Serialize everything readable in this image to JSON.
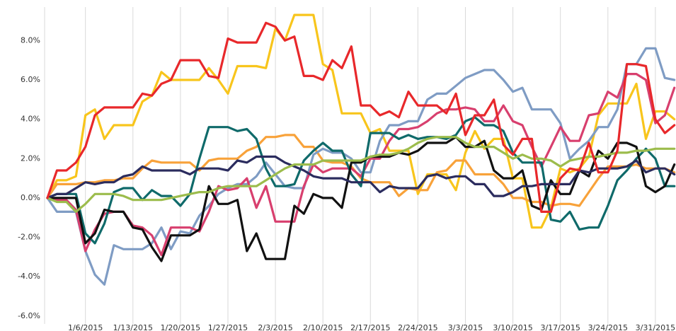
{
  "chart_data": {
    "type": "line",
    "categories": [
      null,
      null,
      null,
      null,
      "1/6/2015",
      null,
      null,
      null,
      null,
      "1/13/2015",
      null,
      null,
      null,
      null,
      "1/20/2015",
      null,
      null,
      null,
      null,
      "1/27/2015",
      null,
      null,
      null,
      null,
      "2/3/2015",
      null,
      null,
      null,
      null,
      "2/10/2015",
      null,
      null,
      null,
      null,
      "2/17/2015",
      null,
      null,
      null,
      null,
      "2/24/2015",
      null,
      null,
      null,
      null,
      "3/3/2015",
      null,
      null,
      null,
      null,
      "3/10/2015",
      null,
      null,
      null,
      null,
      "3/17/2015",
      null,
      null,
      null,
      null,
      "3/24/2015",
      null,
      null,
      null,
      null,
      "3/31/2015",
      null,
      null
    ],
    "ylim": [
      -6.4,
      9.7
    ],
    "yticks": [
      {
        "value": -6,
        "label": "-6.0%"
      },
      {
        "value": -4,
        "label": "-4.0%"
      },
      {
        "value": -2,
        "label": "-2.0%"
      },
      {
        "value": 0,
        "label": "0.0%"
      },
      {
        "value": 2,
        "label": "2.0%"
      },
      {
        "value": 4,
        "label": "4.0%"
      },
      {
        "value": 6,
        "label": "6.0%"
      },
      {
        "value": 8,
        "label": "8.0%"
      }
    ],
    "grid": true,
    "series": [
      {
        "color": "#f8c51c",
        "values": [
          0,
          0.9,
          0.9,
          1.1,
          4.2,
          4.5,
          3.0,
          3.7,
          3.7,
          3.7,
          4.9,
          5.2,
          6.4,
          6.0,
          6.0,
          6.0,
          6.0,
          6.6,
          6.0,
          5.3,
          6.7,
          6.7,
          6.7,
          6.6,
          8.6,
          8.0,
          9.3,
          9.3,
          9.3,
          6.8,
          6.5,
          4.3,
          4.3,
          4.3,
          3.3,
          3.5,
          2.4,
          2.4,
          2.4,
          0.2,
          1.2,
          1.2,
          1.2,
          0.4,
          2.3,
          3.4,
          2.5,
          3.0,
          3.0,
          1.0,
          1.0,
          -1.5,
          -1.5,
          -0.5,
          1.5,
          1.3,
          1.5,
          2.1,
          4.2,
          4.8,
          4.8,
          4.8,
          5.8,
          3.0,
          4.4,
          4.4,
          4.0
        ]
      },
      {
        "color": "#f8a23a",
        "values": [
          0,
          0.7,
          0.7,
          0.7,
          0.8,
          0.8,
          0.9,
          0.9,
          1.0,
          1.0,
          1.5,
          1.9,
          1.8,
          1.8,
          1.8,
          1.8,
          1.4,
          1.9,
          2.0,
          2.0,
          2.0,
          2.4,
          2.6,
          3.1,
          3.1,
          3.2,
          3.2,
          2.6,
          2.6,
          1.9,
          1.8,
          1.8,
          1.6,
          1.0,
          0.8,
          0.8,
          0.8,
          0.1,
          0.5,
          0.4,
          0.4,
          1.3,
          1.4,
          1.9,
          1.9,
          1.2,
          1.2,
          1.2,
          0.7,
          0.0,
          0.0,
          -0.2,
          -0.2,
          -0.4,
          -0.3,
          -0.3,
          -0.4,
          0.3,
          1.0,
          1.6,
          1.6,
          1.6,
          1.7,
          1.5,
          1.5,
          1.5,
          1.3
        ]
      },
      {
        "color": "#7f9cc4",
        "values": [
          0,
          -0.7,
          -0.7,
          -0.7,
          -2.7,
          -3.9,
          -4.4,
          -2.4,
          -2.6,
          -2.6,
          -2.6,
          -2.3,
          -1.5,
          -2.6,
          -1.7,
          -1.8,
          -0.9,
          -0.4,
          0.2,
          0.5,
          0.7,
          0.7,
          1.1,
          1.8,
          1.2,
          0.6,
          0.5,
          0.5,
          2.2,
          2.5,
          2.3,
          2.3,
          2.0,
          1.3,
          1.3,
          2.9,
          3.7,
          3.7,
          3.9,
          3.9,
          5.0,
          5.3,
          5.3,
          5.7,
          6.1,
          6.3,
          6.5,
          6.5,
          6.0,
          5.4,
          5.6,
          4.5,
          4.5,
          4.5,
          3.8,
          2.0,
          2.5,
          2.9,
          3.6,
          3.6,
          4.5,
          6.8,
          6.8,
          7.6,
          7.6,
          6.1,
          6.0
        ]
      },
      {
        "color": "#d83f6e",
        "values": [
          0,
          -0.1,
          -0.1,
          -0.6,
          -2.7,
          -1.6,
          -0.8,
          -0.7,
          -0.7,
          -1.4,
          -1.5,
          -1.9,
          -2.9,
          -1.5,
          -1.5,
          -1.5,
          -1.7,
          -0.7,
          0.6,
          0.4,
          0.5,
          1.0,
          -0.5,
          0.6,
          -1.2,
          -1.2,
          -1.2,
          0.6,
          1.7,
          1.3,
          1.5,
          1.5,
          1.5,
          1.1,
          2.0,
          2.0,
          2.9,
          3.5,
          3.5,
          3.6,
          3.9,
          4.3,
          4.5,
          4.5,
          4.6,
          4.5,
          3.9,
          3.9,
          4.7,
          3.9,
          3.7,
          2.6,
          1.6,
          2.6,
          3.6,
          2.9,
          2.9,
          4.2,
          4.3,
          5.4,
          5.1,
          6.3,
          6.3,
          6.0,
          3.8,
          4.2,
          5.6
        ]
      },
      {
        "color": "#0f6a6a",
        "values": [
          0,
          0.2,
          0.2,
          0.2,
          -1.8,
          -2.3,
          -1.3,
          0.3,
          0.5,
          0.5,
          -0.1,
          0.4,
          0.1,
          0.1,
          -0.4,
          0.2,
          2.0,
          3.6,
          3.6,
          3.6,
          3.4,
          3.5,
          3.0,
          1.5,
          0.6,
          0.6,
          0.7,
          1.9,
          2.4,
          2.8,
          2.4,
          2.4,
          1.2,
          0.6,
          3.3,
          3.3,
          3.3,
          3.0,
          3.2,
          3.0,
          3.1,
          3.1,
          3.0,
          3.2,
          3.9,
          4.1,
          3.7,
          3.7,
          3.4,
          2.3,
          1.8,
          1.8,
          1.8,
          -1.1,
          -1.2,
          -0.7,
          -1.6,
          -1.5,
          -1.5,
          -0.4,
          0.9,
          1.4,
          2.0,
          2.5,
          2.0,
          0.6,
          0.6
        ]
      },
      {
        "color": "#111111",
        "values": [
          0,
          0,
          0,
          0,
          -2.3,
          -1.8,
          -0.6,
          -0.7,
          -0.7,
          -1.5,
          -1.6,
          -2.5,
          -3.2,
          -1.9,
          -1.9,
          -1.9,
          -1.6,
          0.6,
          -0.3,
          -0.3,
          -0.1,
          -2.7,
          -1.8,
          -3.1,
          -3.1,
          -3.1,
          -0.4,
          -0.8,
          0.2,
          0.0,
          0.0,
          -0.5,
          1.8,
          1.8,
          2.1,
          2.1,
          2.1,
          2.3,
          2.2,
          2.4,
          2.8,
          2.8,
          2.8,
          3.1,
          2.6,
          2.6,
          2.9,
          1.4,
          1.0,
          1.0,
          1.4,
          -0.4,
          -0.6,
          0.9,
          0.2,
          0.2,
          1.4,
          1.1,
          2.4,
          2.0,
          2.8,
          2.8,
          2.6,
          0.6,
          0.3,
          0.6,
          1.7
        ]
      },
      {
        "color": "#2b2c5e",
        "values": [
          0,
          0.2,
          0.2,
          0.5,
          0.8,
          0.7,
          0.8,
          0.8,
          1.1,
          1.2,
          1.6,
          1.4,
          1.4,
          1.4,
          1.4,
          1.2,
          1.5,
          1.5,
          1.5,
          1.4,
          1.9,
          1.8,
          2.1,
          2.1,
          2.1,
          1.8,
          1.6,
          1.4,
          1.1,
          1.0,
          1.0,
          1.0,
          0.8,
          0.8,
          0.8,
          0.3,
          0.6,
          0.5,
          0.5,
          0.5,
          1.1,
          1.2,
          1.0,
          1.1,
          1.1,
          0.7,
          0.7,
          0.1,
          0.1,
          0.3,
          0.6,
          0.6,
          0.7,
          0.7,
          0.7,
          0.7,
          1.4,
          1.3,
          1.5,
          1.5,
          1.5,
          1.6,
          1.9,
          1.3,
          1.5,
          1.5,
          1.2
        ]
      },
      {
        "color": "#9cbc4c",
        "values": [
          0,
          -0.2,
          -0.2,
          -0.7,
          -0.3,
          0.2,
          0.2,
          0.2,
          0.1,
          -0.1,
          -0.1,
          -0.1,
          -0.1,
          0.0,
          0.1,
          0.2,
          0.3,
          0.3,
          0.5,
          0.6,
          0.6,
          0.6,
          0.6,
          0.9,
          1.2,
          1.5,
          1.7,
          1.7,
          1.7,
          1.9,
          1.9,
          1.9,
          1.9,
          1.9,
          2.1,
          2.2,
          2.2,
          2.3,
          2.5,
          2.8,
          3.0,
          3.1,
          3.1,
          3.1,
          2.8,
          2.6,
          2.6,
          2.6,
          2.3,
          2.0,
          2.2,
          2.0,
          2.0,
          1.9,
          1.6,
          1.9,
          2.0,
          2.1,
          2.1,
          2.2,
          2.3,
          2.3,
          2.4,
          2.4,
          2.5,
          2.5,
          2.5
        ]
      },
      {
        "color": "#e8282b",
        "values": [
          0,
          1.4,
          1.4,
          1.8,
          2.6,
          4.2,
          4.6,
          4.6,
          4.6,
          4.6,
          5.3,
          5.2,
          5.8,
          6.0,
          7.0,
          7.0,
          7.0,
          6.2,
          6.1,
          8.1,
          7.9,
          7.9,
          7.9,
          8.9,
          8.7,
          8.0,
          8.2,
          6.2,
          6.2,
          6.0,
          7.0,
          6.6,
          7.7,
          4.7,
          4.7,
          4.2,
          4.4,
          4.1,
          5.4,
          4.7,
          4.7,
          4.7,
          4.3,
          5.3,
          3.2,
          4.2,
          4.2,
          5.0,
          2.7,
          2.2,
          3.0,
          3.0,
          -0.7,
          -0.7,
          1.0,
          1.5,
          1.4,
          2.8,
          1.3,
          1.3,
          2.4,
          6.8,
          6.8,
          6.7,
          4.0,
          3.3,
          3.7
        ]
      }
    ]
  }
}
